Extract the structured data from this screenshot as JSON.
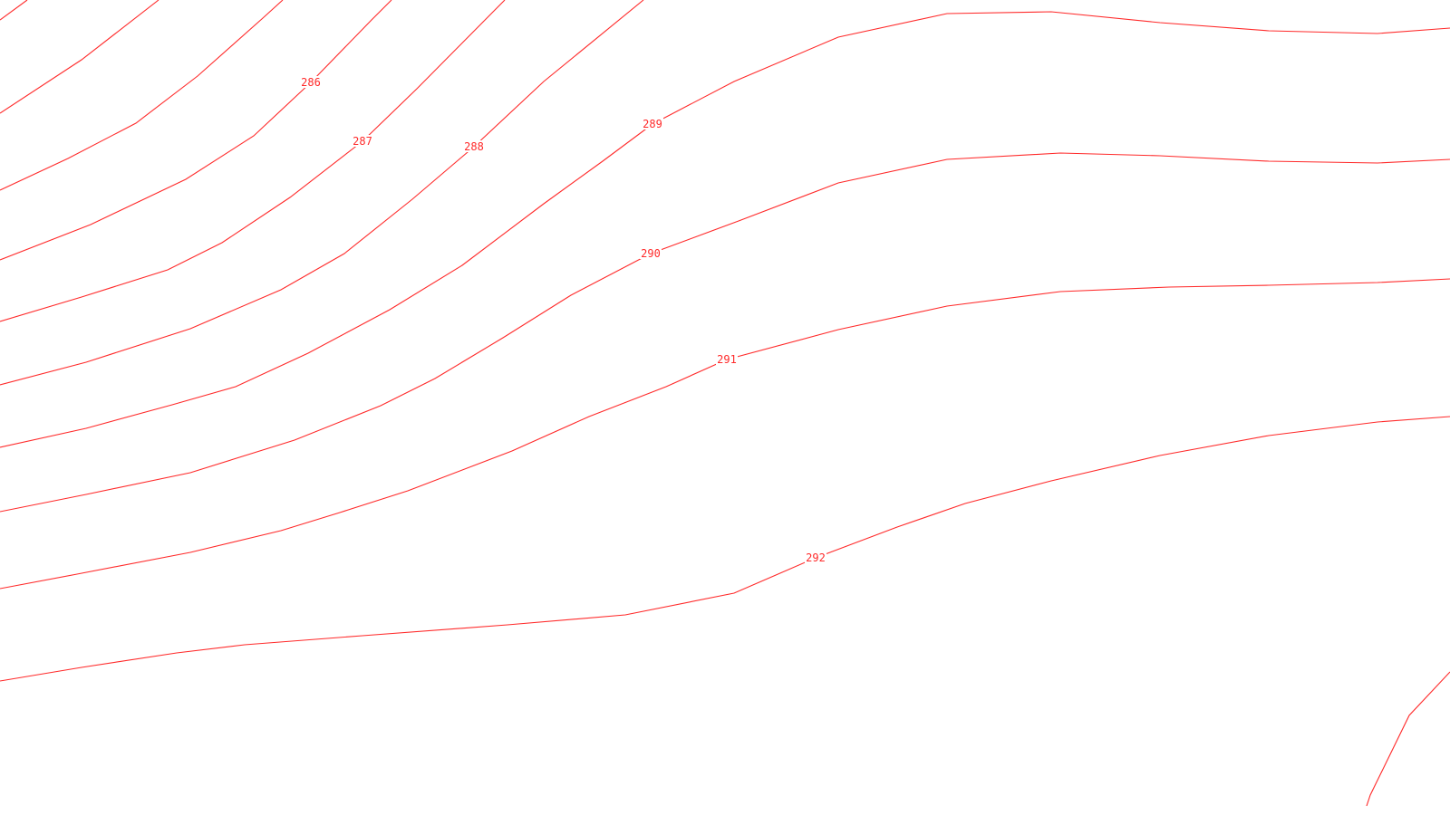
{
  "map": {
    "contour_color": "#ff2a2a",
    "background_color": "#ffffff",
    "labels": [
      {
        "id": "286",
        "text": "286"
      },
      {
        "id": "287",
        "text": "287"
      },
      {
        "id": "288",
        "text": "288"
      },
      {
        "id": "289",
        "text": "289"
      },
      {
        "id": "290",
        "text": "290"
      },
      {
        "id": "291",
        "text": "291"
      },
      {
        "id": "292",
        "text": "292"
      }
    ]
  }
}
